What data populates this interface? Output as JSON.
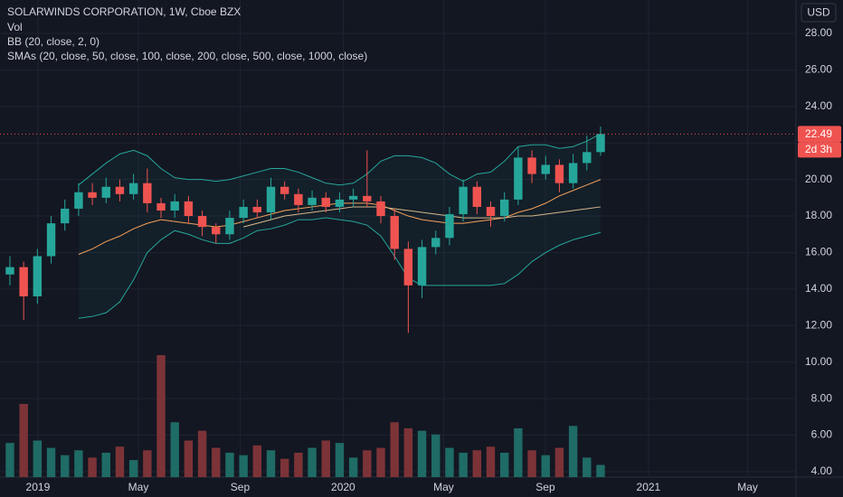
{
  "chart_data": {
    "type": "candlestick",
    "title": "SOLARWINDS CORPORATION, 1W, Cboe BZX",
    "indicators": [
      "Vol",
      "BB (20, close, 2, 0)",
      "SMAs (20, close, 50, close, 100, close, 200, close, 500, close, 1000, close)"
    ],
    "currency": "USD",
    "x": [
      -1.1,
      -0.56,
      -0.02,
      0.52,
      1.06,
      1.6,
      2.14,
      2.68,
      3.22,
      3.76,
      4.3,
      4.84,
      5.38,
      5.92,
      6.46,
      7.0,
      7.54,
      8.08,
      8.62,
      9.16,
      9.7,
      10.24,
      10.78,
      11.32,
      11.86,
      12.4,
      12.94,
      13.48,
      14.02,
      14.56,
      15.1,
      15.64,
      16.18,
      16.72,
      17.26,
      17.8,
      18.34,
      18.88,
      19.42,
      19.96,
      20.5,
      21.04,
      21.58,
      22.12
    ],
    "xlim": [
      -1.49,
      29.8
    ],
    "xticks": [
      {
        "value": 0,
        "label": "2019"
      },
      {
        "value": 3.95,
        "label": "May"
      },
      {
        "value": 7.95,
        "label": "Sep"
      },
      {
        "value": 12,
        "label": "2020"
      },
      {
        "value": 15.95,
        "label": "May"
      },
      {
        "value": 19.95,
        "label": "Sep"
      },
      {
        "value": 24,
        "label": "2021"
      },
      {
        "value": 27.9,
        "label": "May"
      }
    ],
    "ylim": [
      3.7,
      29.83
    ],
    "yticks": [
      {
        "value": 4,
        "label": "4.00"
      },
      {
        "value": 6,
        "label": "6.00"
      },
      {
        "value": 8,
        "label": "8.00"
      },
      {
        "value": 10,
        "label": "10.00"
      },
      {
        "value": 12,
        "label": "12.00"
      },
      {
        "value": 14,
        "label": "14.00"
      },
      {
        "value": 16,
        "label": "16.00"
      },
      {
        "value": 18,
        "label": "18.00"
      },
      {
        "value": 20,
        "label": "20.00"
      },
      {
        "value": 22,
        "label": "22.00"
      },
      {
        "value": 24,
        "label": "24.00"
      },
      {
        "value": 26,
        "label": "26.00"
      },
      {
        "value": 28,
        "label": "28.00"
      }
    ],
    "open": [
      14.8,
      15.2,
      13.6,
      15.8,
      17.6,
      18.4,
      19.3,
      19.0,
      19.6,
      19.2,
      19.8,
      18.7,
      18.3,
      18.8,
      18.0,
      17.4,
      17.0,
      17.9,
      18.5,
      18.2,
      19.6,
      19.2,
      18.6,
      19.0,
      18.5,
      18.9,
      19.1,
      18.8,
      18.0,
      16.2,
      14.2,
      16.3,
      16.8,
      18.1,
      19.6,
      18.5,
      18.0,
      18.9,
      21.2,
      20.3,
      20.8,
      19.8,
      20.9,
      21.5
    ],
    "high": [
      15.8,
      15.5,
      16.2,
      18.0,
      18.9,
      19.8,
      19.8,
      20.1,
      20.0,
      20.3,
      20.6,
      19.0,
      19.2,
      19.1,
      18.3,
      17.6,
      18.3,
      18.9,
      18.9,
      20.1,
      19.9,
      19.5,
      19.4,
      19.3,
      19.3,
      19.5,
      21.6,
      19.1,
      18.4,
      16.6,
      16.7,
      17.2,
      18.5,
      20.0,
      19.9,
      18.8,
      19.3,
      21.8,
      21.6,
      21.3,
      21.1,
      21.4,
      22.4,
      22.9
    ],
    "low": [
      14.2,
      12.3,
      13.2,
      15.4,
      17.2,
      18.0,
      18.6,
      18.7,
      18.8,
      18.9,
      18.2,
      17.9,
      17.9,
      17.6,
      16.9,
      16.5,
      16.7,
      17.6,
      17.9,
      17.8,
      18.9,
      18.2,
      18.3,
      18.2,
      18.2,
      18.5,
      18.5,
      17.6,
      15.6,
      11.6,
      13.5,
      15.9,
      16.4,
      17.7,
      18.1,
      17.4,
      17.7,
      18.6,
      19.8,
      20.0,
      19.3,
      19.5,
      20.5,
      21.3
    ],
    "close": [
      15.2,
      13.6,
      15.8,
      17.6,
      18.4,
      19.3,
      19.0,
      19.6,
      19.2,
      19.8,
      18.7,
      18.3,
      18.8,
      18.0,
      17.4,
      17.0,
      17.9,
      18.5,
      18.2,
      19.6,
      19.2,
      18.6,
      19.0,
      18.5,
      18.9,
      19.1,
      18.8,
      18.0,
      16.2,
      14.2,
      16.3,
      16.8,
      18.1,
      19.6,
      18.5,
      18.0,
      18.9,
      21.2,
      20.3,
      20.8,
      19.8,
      20.9,
      21.5,
      22.49
    ],
    "volume": [
      28,
      60,
      30,
      24,
      18,
      22,
      16,
      20,
      25,
      14,
      22,
      100,
      45,
      30,
      38,
      24,
      20,
      18,
      26,
      22,
      15,
      20,
      24,
      30,
      28,
      16,
      22,
      24,
      45,
      40,
      38,
      35,
      24,
      20,
      22,
      25,
      20,
      40,
      22,
      18,
      24,
      42,
      16,
      10
    ],
    "volume_lim": [
      0,
      100
    ],
    "up_color": "#26a69a",
    "down_color": "#ef5350",
    "volume_up_color": "#1f6b66",
    "volume_down_color": "#7c3337",
    "bb_fill": "#26a69a",
    "lines": [
      {
        "color": "#26a69a",
        "values": [
          null,
          null,
          null,
          null,
          null,
          19.7,
          20.3,
          20.9,
          21.4,
          21.6,
          21.3,
          20.6,
          20.1,
          20.0,
          20.0,
          19.9,
          20.0,
          20.2,
          20.4,
          20.6,
          20.6,
          20.4,
          20.1,
          19.8,
          19.7,
          19.8,
          20.3,
          21.0,
          21.3,
          21.3,
          21.2,
          20.9,
          20.3,
          19.9,
          20.3,
          20.4,
          21.0,
          21.8,
          21.9,
          21.9,
          21.7,
          21.8,
          22.1,
          22.5
        ]
      },
      {
        "color": "#26a69a",
        "values": [
          null,
          null,
          null,
          null,
          null,
          12.4,
          12.5,
          12.7,
          13.3,
          14.5,
          16.0,
          16.7,
          17.2,
          17.0,
          16.7,
          16.5,
          16.5,
          16.8,
          17.2,
          17.3,
          17.5,
          17.8,
          17.8,
          17.9,
          17.8,
          17.7,
          17.5,
          16.9,
          15.8,
          14.6,
          14.2,
          14.2,
          14.2,
          14.2,
          14.2,
          14.2,
          14.3,
          14.8,
          15.5,
          16.0,
          16.4,
          16.7,
          16.9,
          17.1
        ]
      },
      {
        "color": "#f5a05a",
        "values": [
          null,
          null,
          null,
          null,
          null,
          15.9,
          16.2,
          16.6,
          16.9,
          17.3,
          17.6,
          17.8,
          17.7,
          17.6,
          17.5,
          17.4,
          17.5,
          17.7,
          17.9,
          18.1,
          18.3,
          18.4,
          18.5,
          18.6,
          18.7,
          18.7,
          18.7,
          18.6,
          18.3,
          18.0,
          17.8,
          17.7,
          17.6,
          17.6,
          17.7,
          17.8,
          17.9,
          18.2,
          18.4,
          18.7,
          19.1,
          19.4,
          19.7,
          20.0
        ]
      },
      {
        "color": "#d6b88a",
        "values": [
          null,
          null,
          null,
          null,
          null,
          null,
          null,
          null,
          null,
          null,
          null,
          null,
          null,
          null,
          null,
          null,
          null,
          17.4,
          17.6,
          17.8,
          18.0,
          18.1,
          18.2,
          18.3,
          18.4,
          18.5,
          18.5,
          18.5,
          18.4,
          18.3,
          18.2,
          18.1,
          18.0,
          17.9,
          17.9,
          17.9,
          17.9,
          18.0,
          18.0,
          18.1,
          18.2,
          18.3,
          18.4,
          18.5
        ]
      }
    ],
    "last_price": 22.49,
    "countdown": "2d 3h",
    "grid": true
  }
}
